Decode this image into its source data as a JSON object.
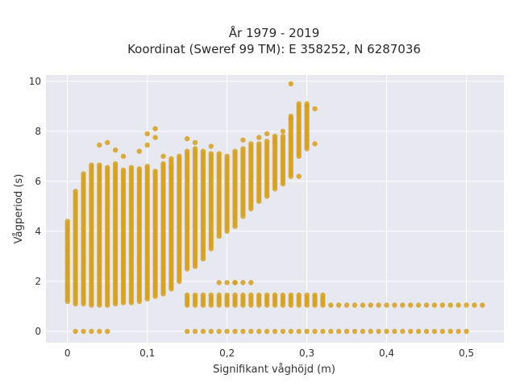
{
  "chart_data": {
    "type": "scatter",
    "title": "År 1979 - 2019",
    "subtitle": "Koordinat (Sweref 99 TM): E 358252, N 6287036",
    "xlabel": "Signifikant våghöjd (m)",
    "ylabel": "Vågperiod (s)",
    "xlim": [
      -0.027,
      0.547
    ],
    "ylim": [
      -0.45,
      10.25
    ],
    "x_ticks": [
      0,
      0.1,
      0.2,
      0.3,
      0.4,
      0.5
    ],
    "x_tick_labels": [
      "0",
      "0,1",
      "0,2",
      "0,3",
      "0,4",
      "0,5"
    ],
    "y_ticks": [
      0,
      2,
      4,
      6,
      8,
      10
    ],
    "y_tick_labels": [
      "0",
      "2",
      "4",
      "6",
      "8",
      "10"
    ],
    "grid": true,
    "marker_color": "#d4a020",
    "plot_background": "#e8e8f0",
    "x_step": 0.01,
    "band_columns": [
      {
        "x": 0.0,
        "ymin": 1.2,
        "ymax": 4.4
      },
      {
        "x": 0.01,
        "ymin": 1.1,
        "ymax": 5.6
      },
      {
        "x": 0.02,
        "ymin": 1.1,
        "ymax": 6.3
      },
      {
        "x": 0.03,
        "ymin": 1.05,
        "ymax": 6.7
      },
      {
        "x": 0.04,
        "ymin": 1.05,
        "ymax": 6.7
      },
      {
        "x": 0.05,
        "ymin": 1.05,
        "ymax": 6.6
      },
      {
        "x": 0.06,
        "ymin": 1.1,
        "ymax": 6.7
      },
      {
        "x": 0.07,
        "ymin": 1.15,
        "ymax": 6.5
      },
      {
        "x": 0.08,
        "ymin": 1.15,
        "ymax": 6.6
      },
      {
        "x": 0.09,
        "ymin": 1.2,
        "ymax": 6.5
      },
      {
        "x": 0.1,
        "ymin": 1.3,
        "ymax": 6.6
      },
      {
        "x": 0.11,
        "ymin": 1.4,
        "ymax": 6.4
      },
      {
        "x": 0.12,
        "ymin": 1.5,
        "ymax": 6.7
      },
      {
        "x": 0.13,
        "ymin": 1.7,
        "ymax": 6.9
      },
      {
        "x": 0.14,
        "ymin": 2.0,
        "ymax": 7.0
      },
      {
        "x": 0.15,
        "ymin": 2.5,
        "ymax": 7.2
      },
      {
        "x": 0.16,
        "ymin": 2.6,
        "ymax": 7.3
      },
      {
        "x": 0.17,
        "ymin": 2.9,
        "ymax": 7.2
      },
      {
        "x": 0.18,
        "ymin": 3.3,
        "ymax": 7.1
      },
      {
        "x": 0.19,
        "ymin": 3.8,
        "ymax": 7.1
      },
      {
        "x": 0.2,
        "ymin": 4.0,
        "ymax": 7.0
      },
      {
        "x": 0.21,
        "ymin": 4.2,
        "ymax": 7.2
      },
      {
        "x": 0.22,
        "ymin": 4.6,
        "ymax": 7.3
      },
      {
        "x": 0.23,
        "ymin": 4.9,
        "ymax": 7.5
      },
      {
        "x": 0.24,
        "ymin": 5.2,
        "ymax": 7.5
      },
      {
        "x": 0.25,
        "ymin": 5.4,
        "ymax": 7.6
      },
      {
        "x": 0.26,
        "ymin": 5.7,
        "ymax": 7.8
      },
      {
        "x": 0.27,
        "ymin": 5.9,
        "ymax": 7.8
      },
      {
        "x": 0.28,
        "ymin": 6.2,
        "ymax": 8.6
      },
      {
        "x": 0.29,
        "ymin": 7.0,
        "ymax": 9.1
      },
      {
        "x": 0.3,
        "ymin": 7.3,
        "ymax": 9.1
      }
    ],
    "low_period_columns": [
      {
        "x": 0.15,
        "ymin": 1.05,
        "ymax": 1.5
      },
      {
        "x": 0.16,
        "ymin": 1.05,
        "ymax": 1.5
      },
      {
        "x": 0.17,
        "ymin": 1.05,
        "ymax": 1.5
      },
      {
        "x": 0.18,
        "ymin": 1.05,
        "ymax": 1.5
      },
      {
        "x": 0.19,
        "ymin": 1.05,
        "ymax": 1.5
      },
      {
        "x": 0.2,
        "ymin": 1.05,
        "ymax": 1.5
      },
      {
        "x": 0.21,
        "ymin": 1.05,
        "ymax": 1.5
      },
      {
        "x": 0.22,
        "ymin": 1.05,
        "ymax": 1.5
      },
      {
        "x": 0.23,
        "ymin": 1.05,
        "ymax": 1.5
      },
      {
        "x": 0.24,
        "ymin": 1.05,
        "ymax": 1.5
      },
      {
        "x": 0.25,
        "ymin": 1.05,
        "ymax": 1.5
      },
      {
        "x": 0.26,
        "ymin": 1.05,
        "ymax": 1.5
      },
      {
        "x": 0.27,
        "ymin": 1.05,
        "ymax": 1.5
      },
      {
        "x": 0.28,
        "ymin": 1.05,
        "ymax": 1.5
      },
      {
        "x": 0.29,
        "ymin": 1.05,
        "ymax": 1.5
      },
      {
        "x": 0.3,
        "ymin": 1.05,
        "ymax": 1.5
      },
      {
        "x": 0.31,
        "ymin": 1.05,
        "ymax": 1.5
      },
      {
        "x": 0.32,
        "ymin": 1.05,
        "ymax": 1.5
      },
      {
        "x": 0.33,
        "ymin": 1.05,
        "ymax": 1.1
      },
      {
        "x": 0.34,
        "ymin": 1.05,
        "ymax": 1.1
      },
      {
        "x": 0.35,
        "ymin": 1.05,
        "ymax": 1.1
      },
      {
        "x": 0.36,
        "ymin": 1.05,
        "ymax": 1.1
      },
      {
        "x": 0.37,
        "ymin": 1.05,
        "ymax": 1.1
      },
      {
        "x": 0.38,
        "ymin": 1.05,
        "ymax": 1.1
      },
      {
        "x": 0.39,
        "ymin": 1.05,
        "ymax": 1.1
      },
      {
        "x": 0.4,
        "ymin": 1.05,
        "ymax": 1.1
      },
      {
        "x": 0.41,
        "ymin": 1.05,
        "ymax": 1.1
      },
      {
        "x": 0.42,
        "ymin": 1.05,
        "ymax": 1.1
      },
      {
        "x": 0.43,
        "ymin": 1.05,
        "ymax": 1.1
      },
      {
        "x": 0.44,
        "ymin": 1.05,
        "ymax": 1.1
      },
      {
        "x": 0.45,
        "ymin": 1.05,
        "ymax": 1.1
      },
      {
        "x": 0.46,
        "ymin": 1.05,
        "ymax": 1.1
      },
      {
        "x": 0.47,
        "ymin": 1.05,
        "ymax": 1.1
      },
      {
        "x": 0.48,
        "ymin": 1.05,
        "ymax": 1.1
      },
      {
        "x": 0.49,
        "ymin": 1.05,
        "ymax": 1.1
      },
      {
        "x": 0.5,
        "ymin": 1.05,
        "ymax": 1.1
      },
      {
        "x": 0.51,
        "ymin": 1.05,
        "ymax": 1.1
      },
      {
        "x": 0.52,
        "ymin": 1.05,
        "ymax": 1.1
      }
    ],
    "zero_period_x": [
      0.01,
      0.02,
      0.03,
      0.04,
      0.05,
      0.15,
      0.16,
      0.17,
      0.18,
      0.19,
      0.2,
      0.21,
      0.22,
      0.23,
      0.24,
      0.25,
      0.26,
      0.27,
      0.28,
      0.29,
      0.3,
      0.31,
      0.32,
      0.33,
      0.34,
      0.35,
      0.36,
      0.37,
      0.38,
      0.39,
      0.4,
      0.41,
      0.42,
      0.43,
      0.44,
      0.45,
      0.46,
      0.47,
      0.48,
      0.49,
      0.5
    ],
    "outliers": [
      [
        0.04,
        7.45
      ],
      [
        0.05,
        7.55
      ],
      [
        0.06,
        7.25
      ],
      [
        0.07,
        7.0
      ],
      [
        0.09,
        7.2
      ],
      [
        0.1,
        7.45
      ],
      [
        0.1,
        7.9
      ],
      [
        0.11,
        7.75
      ],
      [
        0.11,
        8.1
      ],
      [
        0.12,
        7.0
      ],
      [
        0.13,
        6.55
      ],
      [
        0.15,
        7.7
      ],
      [
        0.16,
        7.55
      ],
      [
        0.18,
        7.4
      ],
      [
        0.2,
        1.95
      ],
      [
        0.21,
        1.95
      ],
      [
        0.22,
        1.95
      ],
      [
        0.23,
        1.95
      ],
      [
        0.19,
        1.95
      ],
      [
        0.21,
        1.95
      ],
      [
        0.24,
        7.75
      ],
      [
        0.25,
        7.9
      ],
      [
        0.27,
        8.0
      ],
      [
        0.28,
        8.5
      ],
      [
        0.28,
        9.9
      ],
      [
        0.29,
        6.2
      ],
      [
        0.31,
        8.9
      ],
      [
        0.31,
        7.5
      ],
      [
        0.22,
        7.65
      ],
      [
        0.26,
        7.55
      ],
      [
        0.3,
        9.0
      ]
    ]
  }
}
